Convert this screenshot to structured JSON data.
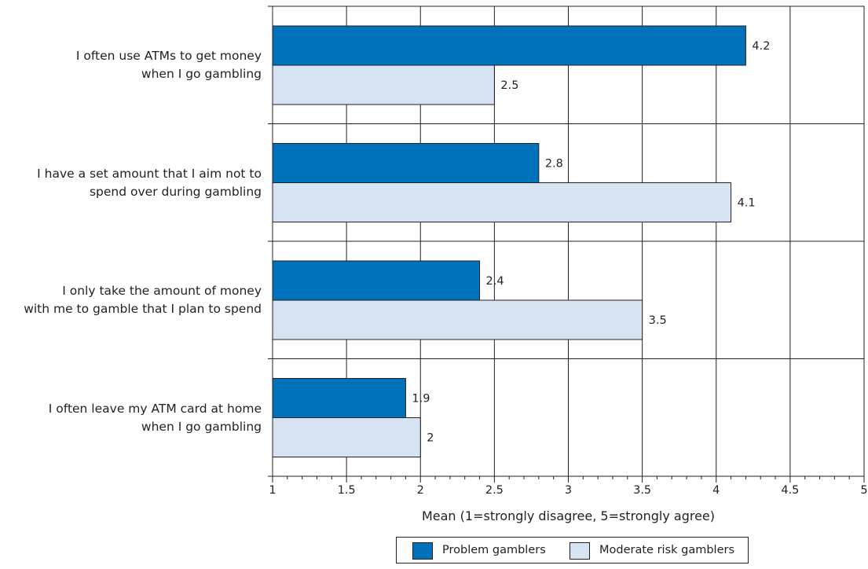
{
  "chart_data": {
    "type": "bar",
    "orientation": "horizontal",
    "categories": [
      [
        "I often use ATMs to get money",
        "when I go gambling"
      ],
      [
        "I have a set amount that I aim not to",
        "spend over during gambling"
      ],
      [
        "I only take the amount of money",
        "with me to gamble that I plan to spend"
      ],
      [
        "I often leave my ATM card at home",
        "when I go gambling"
      ]
    ],
    "series": [
      {
        "name": "Problem gamblers",
        "color": "#0072bc",
        "values": [
          4.2,
          2.8,
          2.4,
          1.9
        ],
        "value_labels": [
          "4.2",
          "2.8",
          "2.4",
          "1.9"
        ]
      },
      {
        "name": "Moderate risk gamblers",
        "color": "#d6e3f3",
        "values": [
          2.5,
          4.1,
          3.5,
          2
        ],
        "value_labels": [
          "2.5",
          "4.1",
          "3.5",
          "2"
        ]
      }
    ],
    "xlabel": "Mean (1=strongly disagree, 5=strongly agree)",
    "xlim": [
      1,
      5
    ],
    "xticks": [
      1,
      1.5,
      2,
      2.5,
      3,
      3.5,
      4,
      4.5,
      5
    ],
    "xtick_labels": [
      "1",
      "1.5",
      "2",
      "2.5",
      "3",
      "3.5",
      "4",
      "4.5",
      "5"
    ],
    "grid": true,
    "legend_position": "bottom"
  }
}
